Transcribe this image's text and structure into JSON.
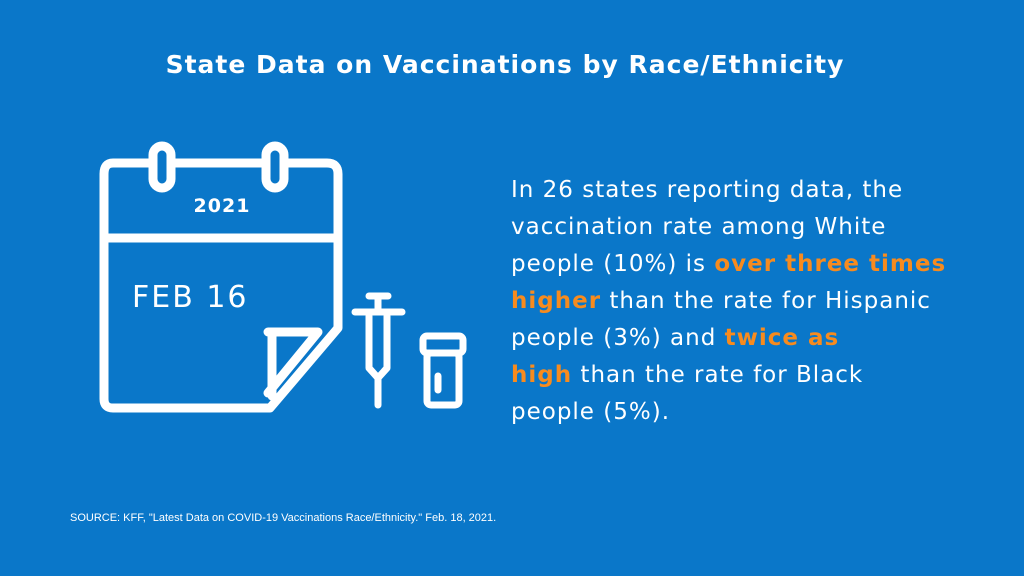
{
  "title": "State Data on Vaccinations by Race/Ethnicity",
  "calendar": {
    "year": "2021",
    "date": "FEB 16"
  },
  "icons": [
    "calendar-icon",
    "syringe-icon",
    "vial-icon"
  ],
  "body": {
    "lines": [
      [
        {
          "text": "In 26 states reporting data, the",
          "highlight": false
        }
      ],
      [
        {
          "text": "vaccination rate among White",
          "highlight": false
        }
      ],
      [
        {
          "text": "people (10%) is ",
          "highlight": false
        },
        {
          "text": "over three times",
          "highlight": true
        }
      ],
      [
        {
          "text": "higher",
          "highlight": true
        },
        {
          "text": " than the rate for Hispanic",
          "highlight": false
        }
      ],
      [
        {
          "text": "people (3%) and ",
          "highlight": false
        },
        {
          "text": "twice as",
          "highlight": true
        }
      ],
      [
        {
          "text": "high",
          "highlight": true
        },
        {
          "text": " than the rate for Black",
          "highlight": false
        }
      ],
      [
        {
          "text": "people (5%).",
          "highlight": false
        }
      ]
    ]
  },
  "source": "SOURCE: KFF, \"Latest Data on COVID-19 Vaccinations Race/Ethnicity.\" Feb. 18, 2021.",
  "colors": {
    "background": "#0a77c9",
    "text": "#ffffff",
    "highlight": "#f78b1e"
  }
}
